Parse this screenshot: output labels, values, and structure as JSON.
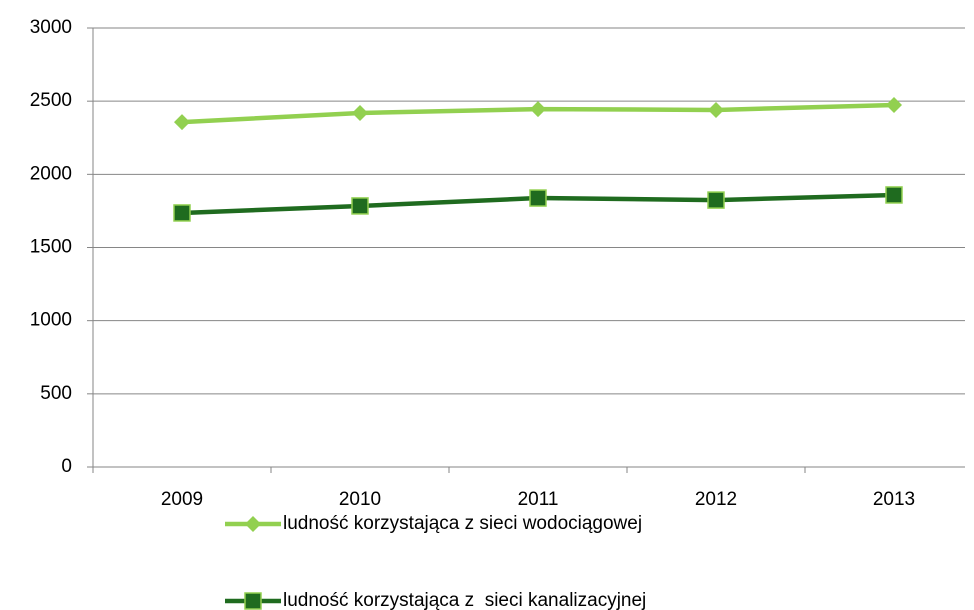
{
  "chart_data": {
    "type": "line",
    "categories": [
      "2009",
      "2010",
      "2011",
      "2012",
      "2013"
    ],
    "series": [
      {
        "name": "ludność korzystająca z sieci wodociągowej",
        "color": "#92d050",
        "marker": "diamond",
        "values": [
          2357,
          2419,
          2446,
          2440,
          2474
        ]
      },
      {
        "name": "ludność korzystająca z  sieci kanalizacyjnej",
        "color": "#1f6b1f",
        "marker": "square",
        "values": [
          1736,
          1784,
          1838,
          1824,
          1859
        ]
      }
    ],
    "ylim": [
      0,
      3000
    ],
    "yticks": [
      0,
      500,
      1000,
      1500,
      2000,
      2500,
      3000
    ],
    "grid": true,
    "legend": "bottom"
  }
}
